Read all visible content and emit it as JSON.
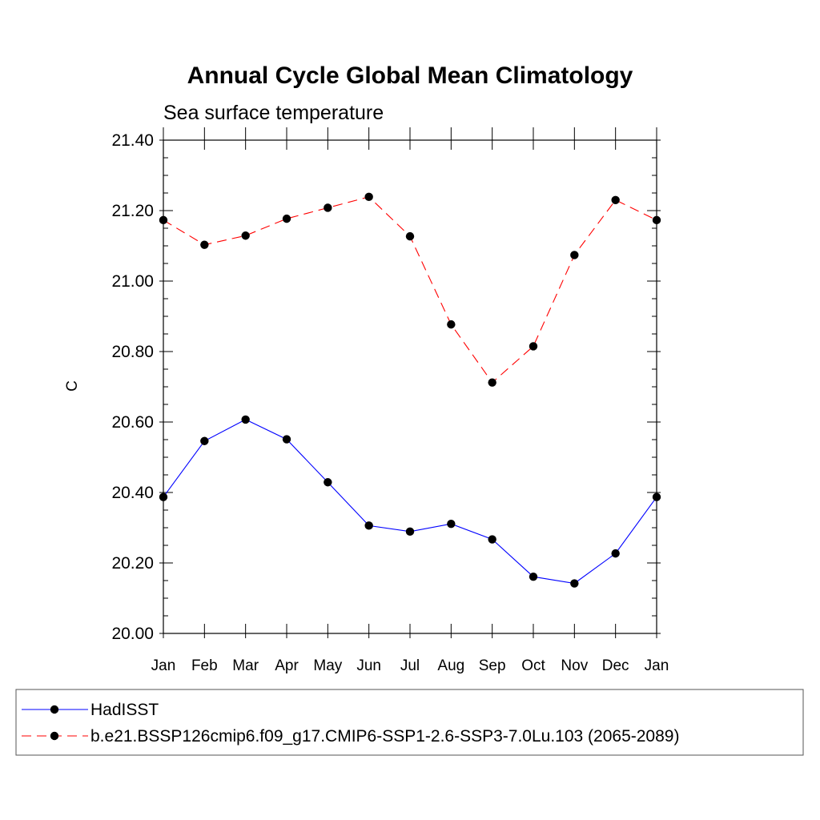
{
  "chart_data": {
    "type": "line",
    "title": "Annual Cycle Global Mean Climatology",
    "subtitle": "Sea surface temperature",
    "xlabel": "",
    "ylabel": "C",
    "categories": [
      "Jan",
      "Feb",
      "Mar",
      "Apr",
      "May",
      "Jun",
      "Jul",
      "Aug",
      "Sep",
      "Oct",
      "Nov",
      "Dec",
      "Jan"
    ],
    "ylim": [
      20.0,
      21.4
    ],
    "yticks": [
      "20.00",
      "20.20",
      "20.40",
      "20.60",
      "20.80",
      "21.00",
      "21.20",
      "21.40"
    ],
    "grid": false,
    "legend_position": "bottom",
    "series": [
      {
        "name": "HadISST",
        "color": "#0000ff",
        "line_style": "solid",
        "marker": "filled-circle",
        "values": [
          20.387,
          20.546,
          20.607,
          20.551,
          20.429,
          20.306,
          20.289,
          20.311,
          20.267,
          20.161,
          20.142,
          20.227,
          20.387
        ]
      },
      {
        "name": "b.e21.BSSP126cmip6.f09_g17.CMIP6-SSP1-2.6-SSP3-7.0Lu.103 (2065-2089)",
        "color": "#ff0000",
        "line_style": "dashed",
        "marker": "filled-circle",
        "values": [
          21.173,
          21.103,
          21.129,
          21.177,
          21.208,
          21.239,
          21.127,
          20.877,
          20.712,
          20.815,
          21.074,
          21.23,
          21.173
        ]
      }
    ]
  }
}
